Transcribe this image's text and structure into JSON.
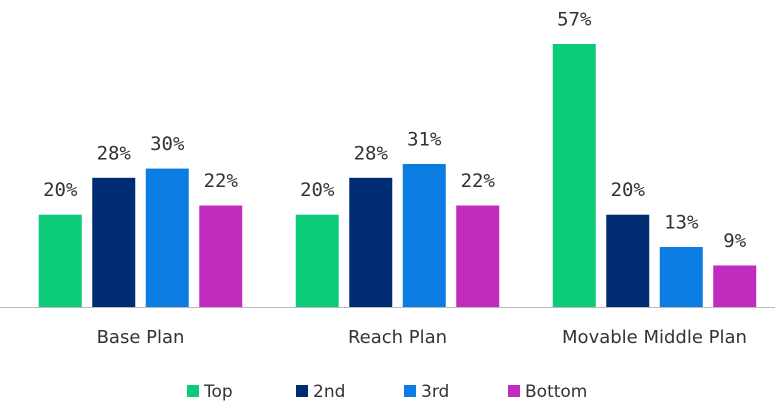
{
  "chart_data": {
    "type": "bar",
    "categories": [
      "Base Plan",
      "Reach Plan",
      "Movable Middle Plan"
    ],
    "series": [
      {
        "name": "Top",
        "color": "#0acb78",
        "values": [
          20,
          20,
          57
        ],
        "value_labels": [
          "20%",
          "20%",
          "57%"
        ]
      },
      {
        "name": "2nd",
        "color": "#002d72",
        "values": [
          28,
          28,
          20
        ],
        "value_labels": [
          "28%",
          "28%",
          "20%"
        ]
      },
      {
        "name": "3rd",
        "color": "#0a7ce2",
        "values": [
          30,
          31,
          13
        ],
        "value_labels": [
          "30%",
          "31%",
          "13%"
        ]
      },
      {
        "name": "Bottom",
        "color": "#c12cbf",
        "values": [
          22,
          22,
          9
        ],
        "value_labels": [
          "22%",
          "22%",
          "9%"
        ]
      }
    ],
    "legend": "bottom"
  }
}
